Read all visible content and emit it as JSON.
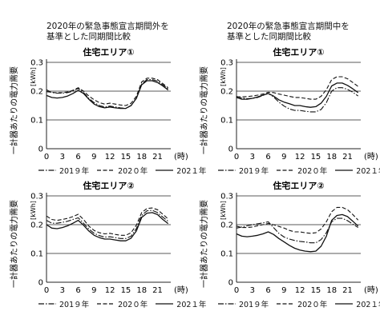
{
  "headings": {
    "left": [
      "2020年の緊急事態宣言期間外を",
      "基準とした同期間比較"
    ],
    "right": [
      "2020年の緊急事態宣言期間中を",
      "基準とした同期間比較"
    ]
  },
  "ylabel": "一計器あたりの電力需要",
  "yunit": "[kWh]",
  "xunit": "(時)",
  "colors": {
    "line": "#111111",
    "grid": "#222222"
  },
  "legend": [
    {
      "label": "201９年",
      "style": "dashdot"
    },
    {
      "label": "202０年",
      "style": "dashed"
    },
    {
      "label": "202１年",
      "style": "solid"
    }
  ],
  "chart_data": [
    {
      "type": "line",
      "title": "住宅エリア①",
      "x": [
        0,
        1,
        2,
        3,
        4,
        5,
        6,
        7,
        8,
        9,
        10,
        11,
        12,
        13,
        14,
        15,
        16,
        17,
        18,
        19,
        20,
        21,
        22,
        23
      ],
      "xticks": [
        0,
        3,
        6,
        9,
        12,
        15,
        18,
        21
      ],
      "yticks": [
        0,
        0.1,
        0.2,
        0.3
      ],
      "ylim": [
        0,
        0.3
      ],
      "xlim": [
        0,
        23.5
      ],
      "series": [
        {
          "name": "201９年",
          "style": "dashdot",
          "values": [
            0.205,
            0.195,
            0.193,
            0.193,
            0.195,
            0.2,
            0.21,
            0.195,
            0.175,
            0.16,
            0.15,
            0.145,
            0.148,
            0.145,
            0.142,
            0.14,
            0.15,
            0.175,
            0.225,
            0.24,
            0.24,
            0.235,
            0.222,
            0.208
          ]
        },
        {
          "name": "202０年",
          "style": "dashed",
          "values": [
            0.198,
            0.196,
            0.194,
            0.195,
            0.197,
            0.203,
            0.212,
            0.2,
            0.183,
            0.17,
            0.16,
            0.155,
            0.158,
            0.155,
            0.152,
            0.15,
            0.158,
            0.182,
            0.232,
            0.245,
            0.245,
            0.24,
            0.226,
            0.212
          ]
        },
        {
          "name": "202１年",
          "style": "solid",
          "values": [
            0.185,
            0.178,
            0.176,
            0.178,
            0.183,
            0.192,
            0.203,
            0.192,
            0.172,
            0.155,
            0.146,
            0.142,
            0.145,
            0.142,
            0.14,
            0.14,
            0.15,
            0.175,
            0.222,
            0.236,
            0.236,
            0.23,
            0.218,
            0.204
          ]
        }
      ]
    },
    {
      "type": "line",
      "title": "住宅エリア①",
      "x": [
        0,
        1,
        2,
        3,
        4,
        5,
        6,
        7,
        8,
        9,
        10,
        11,
        12,
        13,
        14,
        15,
        16,
        17,
        18,
        19,
        20,
        21,
        22,
        23
      ],
      "xticks": [
        0,
        3,
        6,
        9,
        12,
        15,
        18,
        21
      ],
      "yticks": [
        0,
        0.1,
        0.2,
        0.3
      ],
      "ylim": [
        0,
        0.3
      ],
      "xlim": [
        0,
        23.5
      ],
      "series": [
        {
          "name": "201９年",
          "style": "dashdot",
          "values": [
            0.182,
            0.176,
            0.174,
            0.175,
            0.178,
            0.185,
            0.192,
            0.18,
            0.162,
            0.148,
            0.138,
            0.133,
            0.133,
            0.13,
            0.128,
            0.128,
            0.136,
            0.16,
            0.2,
            0.212,
            0.212,
            0.206,
            0.196,
            0.183
          ]
        },
        {
          "name": "202０年",
          "style": "dashed",
          "values": [
            0.18,
            0.18,
            0.181,
            0.183,
            0.186,
            0.19,
            0.196,
            0.195,
            0.19,
            0.186,
            0.182,
            0.178,
            0.178,
            0.175,
            0.172,
            0.172,
            0.182,
            0.205,
            0.24,
            0.25,
            0.25,
            0.243,
            0.23,
            0.216
          ]
        },
        {
          "name": "202１年",
          "style": "solid",
          "values": [
            0.178,
            0.172,
            0.172,
            0.175,
            0.18,
            0.186,
            0.192,
            0.183,
            0.17,
            0.162,
            0.156,
            0.15,
            0.15,
            0.146,
            0.144,
            0.146,
            0.158,
            0.182,
            0.218,
            0.228,
            0.228,
            0.22,
            0.208,
            0.195
          ]
        }
      ]
    },
    {
      "type": "line",
      "title": "住宅エリア②",
      "x": [
        0,
        1,
        2,
        3,
        4,
        5,
        6,
        7,
        8,
        9,
        10,
        11,
        12,
        13,
        14,
        15,
        16,
        17,
        18,
        19,
        20,
        21,
        22,
        23
      ],
      "xticks": [
        0,
        3,
        6,
        9,
        12,
        15,
        18,
        21
      ],
      "yticks": [
        0,
        0.1,
        0.2,
        0.3
      ],
      "ylim": [
        0,
        0.3
      ],
      "xlim": [
        0,
        23.5
      ],
      "series": [
        {
          "name": "201９年",
          "style": "dashdot",
          "values": [
            0.215,
            0.205,
            0.205,
            0.208,
            0.212,
            0.218,
            0.224,
            0.205,
            0.185,
            0.17,
            0.162,
            0.157,
            0.158,
            0.155,
            0.152,
            0.152,
            0.16,
            0.186,
            0.232,
            0.248,
            0.25,
            0.242,
            0.226,
            0.212
          ]
        },
        {
          "name": "202０年",
          "style": "dashed",
          "values": [
            0.23,
            0.218,
            0.215,
            0.218,
            0.222,
            0.228,
            0.236,
            0.218,
            0.195,
            0.18,
            0.172,
            0.168,
            0.17,
            0.166,
            0.163,
            0.163,
            0.172,
            0.198,
            0.242,
            0.256,
            0.258,
            0.252,
            0.236,
            0.22
          ]
        },
        {
          "name": "202１年",
          "style": "solid",
          "values": [
            0.2,
            0.188,
            0.186,
            0.19,
            0.196,
            0.205,
            0.215,
            0.198,
            0.178,
            0.163,
            0.155,
            0.15,
            0.15,
            0.147,
            0.144,
            0.144,
            0.153,
            0.178,
            0.225,
            0.24,
            0.242,
            0.235,
            0.218,
            0.204
          ]
        }
      ]
    },
    {
      "type": "line",
      "title": "住宅エリア②",
      "x": [
        0,
        1,
        2,
        3,
        4,
        5,
        6,
        7,
        8,
        9,
        10,
        11,
        12,
        13,
        14,
        15,
        16,
        17,
        18,
        19,
        20,
        21,
        22,
        23
      ],
      "xticks": [
        0,
        3,
        6,
        9,
        12,
        15,
        18,
        21
      ],
      "yticks": [
        0,
        0.1,
        0.2,
        0.3
      ],
      "ylim": [
        0,
        0.3
      ],
      "xlim": [
        0,
        23.5
      ],
      "series": [
        {
          "name": "201９年",
          "style": "dashdot",
          "values": [
            0.188,
            0.192,
            0.196,
            0.2,
            0.203,
            0.206,
            0.21,
            0.19,
            0.17,
            0.157,
            0.15,
            0.145,
            0.142,
            0.14,
            0.137,
            0.137,
            0.148,
            0.172,
            0.21,
            0.222,
            0.222,
            0.214,
            0.202,
            0.19
          ]
        },
        {
          "name": "202０年",
          "style": "dashed",
          "values": [
            0.195,
            0.19,
            0.19,
            0.192,
            0.196,
            0.2,
            0.204,
            0.2,
            0.194,
            0.188,
            0.18,
            0.175,
            0.175,
            0.172,
            0.17,
            0.172,
            0.185,
            0.21,
            0.245,
            0.26,
            0.26,
            0.252,
            0.235,
            0.216
          ]
        },
        {
          "name": "202１年",
          "style": "solid",
          "values": [
            0.168,
            0.16,
            0.158,
            0.16,
            0.163,
            0.168,
            0.175,
            0.166,
            0.152,
            0.14,
            0.128,
            0.118,
            0.112,
            0.108,
            0.106,
            0.108,
            0.125,
            0.16,
            0.215,
            0.232,
            0.235,
            0.228,
            0.212,
            0.195
          ]
        }
      ]
    }
  ]
}
